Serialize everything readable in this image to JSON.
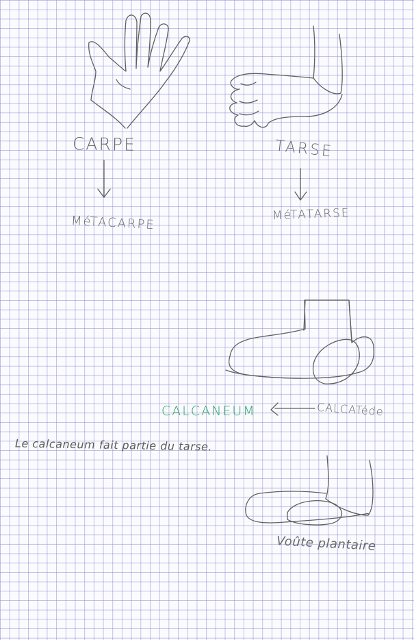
{
  "notes": {
    "carpe": "CARPE",
    "metacarpe": "MéTACARPE",
    "tarse": "TARSE",
    "metatarse": "MéTATARSE",
    "calcaneum": "CALCANEUM",
    "calcatede": "CALCATéde",
    "sentence": "Le calcaneum fait partie du tarse.",
    "voute_plantaire": "Voûte plantaire"
  },
  "colors": {
    "pencil": "#5f5f5f",
    "green_ink": "#27a35e",
    "grid": "#8c8cd7"
  }
}
